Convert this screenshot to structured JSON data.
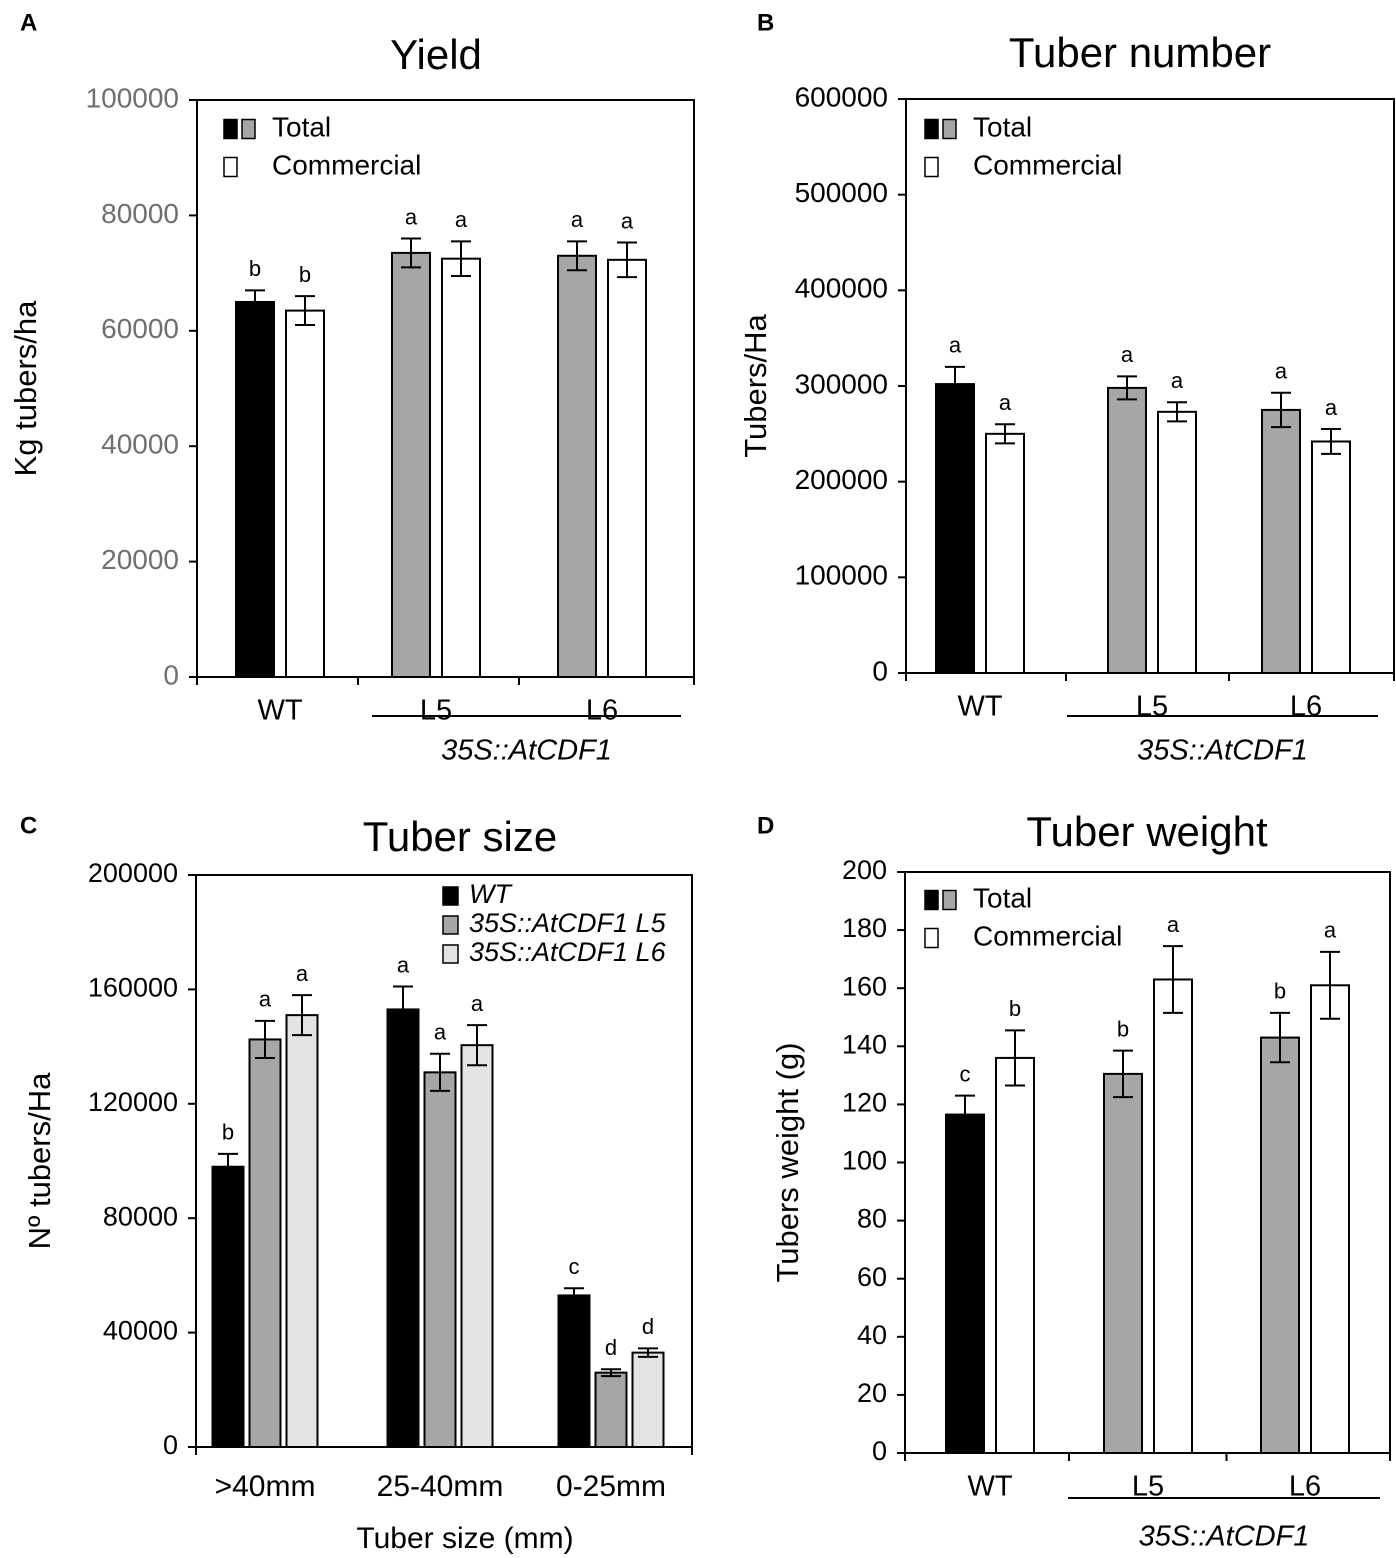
{
  "chart_data": [
    {
      "type": "bar",
      "panel_label": "A",
      "title": "Yield",
      "ylabel": "Kg tubers/ha",
      "xlabel": "",
      "ylim": [
        0,
        100000
      ],
      "yticks": [
        0,
        20000,
        40000,
        60000,
        80000,
        100000
      ],
      "tick_color": "#6f6f6f",
      "categories": [
        "WT",
        "L5",
        "L6"
      ],
      "group_label": "35S::AtCDF1",
      "legend": [
        {
          "swatches": [
            "#000000",
            "#a6a6a6"
          ],
          "label": "Total"
        },
        {
          "swatches": [
            "#ffffff"
          ],
          "label": "Commercial"
        }
      ],
      "series": [
        {
          "name": "Total",
          "colors": [
            "#000000",
            "#a6a6a6",
            "#a6a6a6"
          ],
          "values": [
            65000,
            73500,
            73000
          ],
          "errors": [
            2000,
            2500,
            2500
          ],
          "letters": [
            "b",
            "a",
            "a"
          ]
        },
        {
          "name": "Commercial",
          "colors": [
            "#ffffff",
            "#ffffff",
            "#ffffff"
          ],
          "values": [
            63500,
            72500,
            72300
          ],
          "errors": [
            2500,
            3000,
            3000
          ],
          "letters": [
            "b",
            "a",
            "a"
          ]
        }
      ]
    },
    {
      "type": "bar",
      "panel_label": "B",
      "title": "Tuber number",
      "ylabel": "Tubers/Ha",
      "xlabel": "",
      "ylim": [
        0,
        600000
      ],
      "yticks": [
        0,
        100000,
        200000,
        300000,
        400000,
        500000,
        600000
      ],
      "tick_color": "#000000",
      "categories": [
        "WT",
        "L5",
        "L6"
      ],
      "group_label": "35S::AtCDF1",
      "legend": [
        {
          "swatches": [
            "#000000",
            "#a6a6a6"
          ],
          "label": "Total"
        },
        {
          "swatches": [
            "#ffffff"
          ],
          "label": "Commercial"
        }
      ],
      "series": [
        {
          "name": "Total",
          "colors": [
            "#000000",
            "#a6a6a6",
            "#a6a6a6"
          ],
          "values": [
            302000,
            298000,
            275000
          ],
          "errors": [
            18000,
            12000,
            18000
          ],
          "letters": [
            "a",
            "a",
            "a"
          ]
        },
        {
          "name": "Commercial",
          "colors": [
            "#ffffff",
            "#ffffff",
            "#ffffff"
          ],
          "values": [
            250000,
            273000,
            242000
          ],
          "errors": [
            10000,
            10000,
            13000
          ],
          "letters": [
            "a",
            "a",
            "a"
          ]
        }
      ]
    },
    {
      "type": "bar",
      "panel_label": "C",
      "title": "Tuber size",
      "ylabel": "Nº tubers/Ha",
      "xlabel": "Tuber size (mm)",
      "ylim": [
        0,
        200000
      ],
      "yticks": [
        0,
        40000,
        80000,
        120000,
        160000,
        200000
      ],
      "tick_color": "#000000",
      "categories": [
        ">40mm",
        "25-40mm",
        "0-25mm"
      ],
      "legend": [
        {
          "swatches": [
            "#000000"
          ],
          "label": "WT"
        },
        {
          "swatches": [
            "#a6a6a6"
          ],
          "label": "35S::AtCDF1 L5"
        },
        {
          "swatches": [
            "#e3e3e3"
          ],
          "label": "35S::AtCDF1 L6"
        }
      ],
      "series": [
        {
          "name": "WT",
          "colors": [
            "#000000",
            "#000000",
            "#000000"
          ],
          "values": [
            98000,
            153000,
            53000
          ],
          "errors": [
            4500,
            8000,
            2500
          ],
          "letters": [
            "b",
            "a",
            "c"
          ]
        },
        {
          "name": "35S::AtCDF1 L5",
          "colors": [
            "#a6a6a6",
            "#a6a6a6",
            "#a6a6a6"
          ],
          "values": [
            142500,
            131000,
            26000
          ],
          "errors": [
            6500,
            6500,
            1200
          ],
          "letters": [
            "a",
            "a",
            "d"
          ]
        },
        {
          "name": "35S::AtCDF1 L6",
          "colors": [
            "#e3e3e3",
            "#e3e3e3",
            "#e3e3e3"
          ],
          "values": [
            151000,
            140500,
            33000
          ],
          "errors": [
            7000,
            7000,
            1500
          ],
          "letters": [
            "a",
            "a",
            "d"
          ]
        }
      ]
    },
    {
      "type": "bar",
      "panel_label": "D",
      "title": "Tuber weight",
      "ylabel": "Tubers weight (g)",
      "xlabel": "",
      "ylim": [
        0,
        200
      ],
      "yticks": [
        0,
        20,
        40,
        60,
        80,
        100,
        120,
        140,
        160,
        180,
        200
      ],
      "tick_color": "#000000",
      "categories": [
        "WT",
        "L5",
        "L6"
      ],
      "group_label": "35S::AtCDF1",
      "legend": [
        {
          "swatches": [
            "#000000",
            "#a6a6a6"
          ],
          "label": "Total"
        },
        {
          "swatches": [
            "#ffffff"
          ],
          "label": "Commercial"
        }
      ],
      "series": [
        {
          "name": "Total",
          "colors": [
            "#000000",
            "#a6a6a6",
            "#a6a6a6"
          ],
          "values": [
            116.5,
            130.5,
            143
          ],
          "errors": [
            6.5,
            8,
            8.5
          ],
          "letters": [
            "c",
            "b",
            "b"
          ]
        },
        {
          "name": "Commercial",
          "colors": [
            "#ffffff",
            "#ffffff",
            "#ffffff"
          ],
          "values": [
            136,
            163,
            161
          ],
          "errors": [
            9.5,
            11.5,
            11.5
          ],
          "letters": [
            "b",
            "a",
            "a"
          ]
        }
      ]
    }
  ]
}
